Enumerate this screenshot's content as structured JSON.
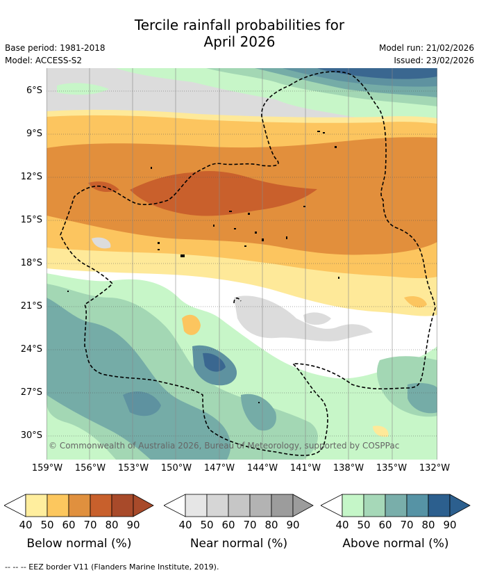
{
  "title_line1": "Tercile rainfall probabilities for",
  "title_line2": "April 2026",
  "base_period": "Base period: 1981-2018",
  "model": "Model: ACCESS-S2",
  "model_run": "Model run: 21/02/2026",
  "issued": "Issued: 23/02/2026",
  "map": {
    "lat_labels": [
      "6°S",
      "9°S",
      "12°S",
      "15°S",
      "18°S",
      "21°S",
      "24°S",
      "27°S",
      "30°S"
    ],
    "lon_labels": [
      "159°W",
      "156°W",
      "153°W",
      "150°W",
      "147°W",
      "144°W",
      "141°W",
      "138°W",
      "135°W",
      "132°W"
    ],
    "copyright": "© Commonwealth of Australia 2026, Bureau of Meteorology, supported by COSPPac",
    "colors": {
      "below_light": "#fee999",
      "below_mid": "#fcc55f",
      "below_orange": "#e28f3c",
      "below_dark": "#c9602c",
      "near_light": "#dcdcdc",
      "above_light": "#c7f6c8",
      "above_mid": "#a3d7b4",
      "above_teal": "#75aca7",
      "above_dark": "#5e92a0",
      "above_darkest": "#3a6790"
    }
  },
  "colorbars": [
    {
      "name": "below",
      "title": "Below normal (%)",
      "ticks": [
        "40",
        "50",
        "60",
        "70",
        "80",
        "90"
      ],
      "colors": [
        "#ffee9e",
        "#fcc75e",
        "#e0903e",
        "#c8602c",
        "#a84a2a"
      ]
    },
    {
      "name": "near",
      "title": "Near normal (%)",
      "ticks": [
        "40",
        "50",
        "60",
        "70",
        "80",
        "90"
      ],
      "colors": [
        "#e6e6e6",
        "#d6d6d6",
        "#c6c6c6",
        "#b3b3b3",
        "#9c9c9c"
      ]
    },
    {
      "name": "above",
      "title": "Above normal (%)",
      "ticks": [
        "40",
        "50",
        "60",
        "70",
        "80",
        "90"
      ],
      "colors": [
        "#c5f6c8",
        "#a6d8b8",
        "#79aeaa",
        "#5693a5",
        "#2c5f8e"
      ]
    }
  ],
  "footer": "-- -- -- EEZ border V11 (Flanders Marine Institute, 2019)."
}
